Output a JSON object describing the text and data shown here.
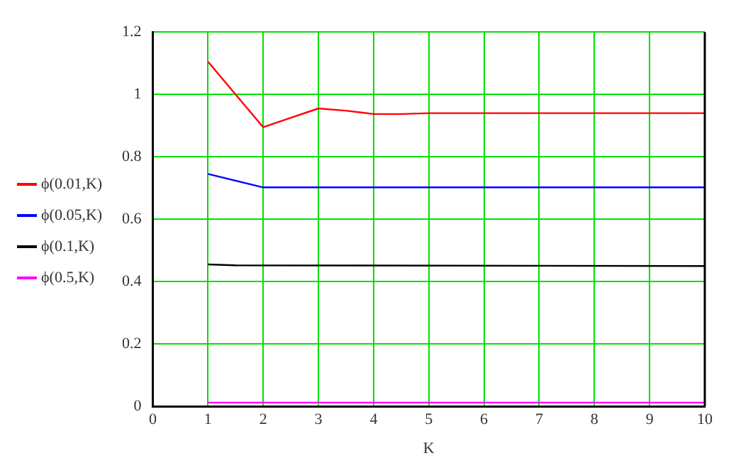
{
  "chart_data": {
    "type": "line",
    "xlabel": "K",
    "xlim": [
      0,
      10
    ],
    "xticks": [
      0,
      1,
      2,
      3,
      4,
      5,
      6,
      7,
      8,
      9,
      10
    ],
    "ylim": [
      0,
      1.2
    ],
    "yticks": [
      0,
      0.2,
      0.4,
      0.6,
      0.8,
      1,
      1.2
    ],
    "grid": true,
    "legend": "left",
    "marker": "none",
    "line_style": "solid",
    "series": [
      {
        "name": "ϕ(0.01,K)",
        "color": "#ff0000",
        "x": [
          1,
          2,
          2.5,
          3,
          3.5,
          4,
          4.5,
          5,
          10
        ],
        "values": [
          1.105,
          0.895,
          0.925,
          0.955,
          0.948,
          0.937,
          0.937,
          0.94,
          0.94
        ]
      },
      {
        "name": "ϕ(0.05,K)",
        "color": "#0000ff",
        "x": [
          1,
          2,
          10
        ],
        "values": [
          0.745,
          0.702,
          0.702
        ]
      },
      {
        "name": "ϕ(0.1,K)",
        "color": "#000000",
        "x": [
          1,
          1.5,
          10
        ],
        "values": [
          0.455,
          0.452,
          0.45
        ]
      },
      {
        "name": "ϕ(0.5,K)",
        "color": "#ff00ff",
        "x": [
          1,
          10
        ],
        "values": [
          0.012,
          0.012
        ]
      }
    ]
  }
}
